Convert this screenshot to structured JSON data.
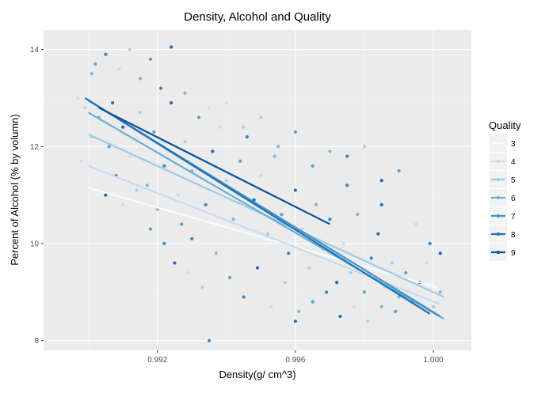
{
  "chart_data": {
    "type": "scatter",
    "title": "Density, Alcohol and Quality",
    "xlabel": "Density(g/ cm^3)",
    "ylabel": "Percent of Alcohol (% by volumn)",
    "xlim": [
      0.9887,
      1.0011
    ],
    "ylim": [
      7.8,
      14.4
    ],
    "x_ticks": [
      0.992,
      0.996,
      1.0
    ],
    "x_tick_labels": [
      "0.992",
      "0.996",
      "1.000"
    ],
    "y_ticks": [
      8,
      10,
      12,
      14
    ],
    "y_tick_labels": [
      "8",
      "10",
      "12",
      "14"
    ],
    "grid": true,
    "legend": {
      "title": "Quality",
      "placement": "right",
      "entries": [
        "3",
        "4",
        "5",
        "6",
        "7",
        "8",
        "9"
      ]
    },
    "series": [
      {
        "name": "3",
        "color": "#f7fbff",
        "fit": {
          "x": [
            0.99,
            1.0001
          ],
          "y": [
            11.15,
            9.1
          ]
        }
      },
      {
        "name": "4",
        "color": "#c6dbef",
        "fit": {
          "x": [
            0.99,
            1.0002
          ],
          "y": [
            11.6,
            8.75
          ]
        }
      },
      {
        "name": "5",
        "color": "#9ecae1",
        "fit": {
          "x": [
            0.99,
            1.0003
          ],
          "y": [
            12.25,
            8.9
          ]
        }
      },
      {
        "name": "6",
        "color": "#6baed6",
        "fit": {
          "x": [
            0.99,
            1.0003
          ],
          "y": [
            12.7,
            8.45
          ]
        }
      },
      {
        "name": "7",
        "color": "#4292c6",
        "fit": {
          "x": [
            0.99,
            1.0002
          ],
          "y": [
            12.95,
            8.5
          ]
        }
      },
      {
        "name": "8",
        "color": "#2171b5",
        "fit": {
          "x": [
            0.9899,
            0.9999
          ],
          "y": [
            13.0,
            8.55
          ]
        }
      },
      {
        "name": "9",
        "color": "#08519c",
        "fit": {
          "x": [
            0.9903,
            0.997
          ],
          "y": [
            12.8,
            10.4
          ]
        }
      }
    ],
    "points": [
      [
        0.9897,
        13.0
      ],
      [
        0.9899,
        12.8
      ],
      [
        0.9901,
        13.5
      ],
      [
        0.9902,
        13.7
      ],
      [
        0.9905,
        13.9
      ],
      [
        0.9907,
        12.9
      ],
      [
        0.9909,
        13.6
      ],
      [
        0.9912,
        14.0
      ],
      [
        0.9915,
        13.4
      ],
      [
        0.9918,
        13.8
      ],
      [
        0.9921,
        13.2
      ],
      [
        0.9924,
        14.05
      ],
      [
        0.9898,
        11.7
      ],
      [
        0.9901,
        12.2
      ],
      [
        0.9903,
        12.6
      ],
      [
        0.9906,
        12.0
      ],
      [
        0.9908,
        11.4
      ],
      [
        0.991,
        12.4
      ],
      [
        0.9912,
        11.8
      ],
      [
        0.9915,
        12.7
      ],
      [
        0.9917,
        11.2
      ],
      [
        0.9919,
        12.3
      ],
      [
        0.9922,
        11.6
      ],
      [
        0.9924,
        12.9
      ],
      [
        0.9926,
        11.0
      ],
      [
        0.9928,
        12.1
      ],
      [
        0.993,
        11.5
      ],
      [
        0.9932,
        12.6
      ],
      [
        0.9934,
        10.8
      ],
      [
        0.9936,
        11.9
      ],
      [
        0.9938,
        12.4
      ],
      [
        0.994,
        11.3
      ],
      [
        0.9942,
        10.5
      ],
      [
        0.9944,
        11.7
      ],
      [
        0.9946,
        12.2
      ],
      [
        0.9948,
        10.9
      ],
      [
        0.995,
        11.4
      ],
      [
        0.9952,
        10.2
      ],
      [
        0.9954,
        11.8
      ],
      [
        0.9956,
        10.6
      ],
      [
        0.9958,
        9.8
      ],
      [
        0.996,
        11.1
      ],
      [
        0.9962,
        10.3
      ],
      [
        0.9964,
        9.5
      ],
      [
        0.9966,
        10.8
      ],
      [
        0.9968,
        9.9
      ],
      [
        0.997,
        10.5
      ],
      [
        0.9972,
        9.2
      ],
      [
        0.9974,
        10.0
      ],
      [
        0.9976,
        9.4
      ],
      [
        0.9978,
        10.6
      ],
      [
        0.998,
        9.0
      ],
      [
        0.9982,
        9.7
      ],
      [
        0.9984,
        10.2
      ],
      [
        0.9986,
        9.1
      ],
      [
        0.9988,
        9.6
      ],
      [
        0.999,
        8.9
      ],
      [
        0.9992,
        9.4
      ],
      [
        0.9994,
        8.8
      ],
      [
        0.9996,
        9.2
      ],
      [
        0.9998,
        9.6
      ],
      [
        1.0,
        8.7
      ],
      [
        1.0002,
        9.0
      ],
      [
        0.9918,
        10.3
      ],
      [
        0.9922,
        10.0
      ],
      [
        0.9925,
        9.6
      ],
      [
        0.9929,
        9.4
      ],
      [
        0.9933,
        9.1
      ],
      [
        0.9937,
        9.8
      ],
      [
        0.9941,
        9.3
      ],
      [
        0.9945,
        8.9
      ],
      [
        0.9949,
        9.5
      ],
      [
        0.9953,
        8.7
      ],
      [
        0.9957,
        9.2
      ],
      [
        0.9961,
        8.6
      ],
      [
        0.9965,
        8.8
      ],
      [
        0.9969,
        9.0
      ],
      [
        0.9973,
        8.5
      ],
      [
        0.9977,
        8.7
      ],
      [
        0.9981,
        8.4
      ],
      [
        0.9985,
        8.7
      ],
      [
        0.9989,
        8.6
      ],
      [
        0.9935,
        8.0
      ],
      [
        0.996,
        8.4
      ],
      [
        0.9935,
        12.8
      ],
      [
        0.9945,
        12.4
      ],
      [
        0.9955,
        12.0
      ],
      [
        0.9965,
        11.6
      ],
      [
        0.9975,
        11.2
      ],
      [
        0.9985,
        10.8
      ],
      [
        0.9995,
        10.4
      ],
      [
        0.998,
        12.0
      ],
      [
        0.997,
        11.9
      ],
      [
        0.999,
        11.5
      ],
      [
        0.9999,
        10.0
      ],
      [
        1.0002,
        9.8
      ],
      [
        0.994,
        12.9
      ],
      [
        0.995,
        12.6
      ],
      [
        0.9928,
        13.1
      ],
      [
        0.996,
        12.3
      ],
      [
        0.9975,
        11.8
      ],
      [
        0.9985,
        11.3
      ],
      [
        0.991,
        10.8
      ],
      [
        0.9914,
        11.1
      ],
      [
        0.992,
        10.7
      ],
      [
        0.9927,
        10.4
      ],
      [
        0.993,
        10.1
      ],
      [
        0.9905,
        11.0
      ]
    ]
  }
}
